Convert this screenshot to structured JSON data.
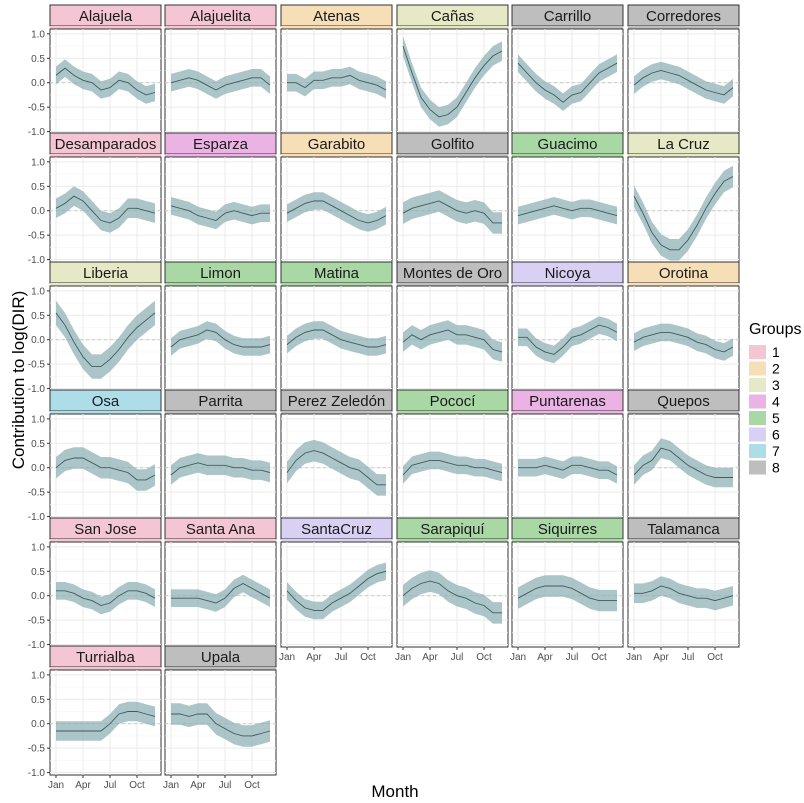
{
  "chart_data": {
    "type": "line",
    "xlabel": "Month",
    "ylabel": "Contribution to log(DIR)",
    "x_ticks": [
      "Jan",
      "Apr",
      "Jul",
      "Oct"
    ],
    "y_ticks": [
      "1.0",
      "0.5",
      "0.0",
      "-0.5",
      "-1.0"
    ],
    "ylim": [
      -1.05,
      1.1
    ],
    "x": [
      1,
      2,
      3,
      4,
      5,
      6,
      7,
      8,
      9,
      10,
      11,
      12
    ],
    "legend": {
      "title": "Groups",
      "position": "right",
      "items": [
        {
          "label": "1",
          "color": "#F4C6D3"
        },
        {
          "label": "2",
          "color": "#F6DEB7"
        },
        {
          "label": "3",
          "color": "#E5E9C5"
        },
        {
          "label": "4",
          "color": "#EBB3E3"
        },
        {
          "label": "5",
          "color": "#A9D8A5"
        },
        {
          "label": "6",
          "color": "#D8D1F3"
        },
        {
          "label": "7",
          "color": "#AEDDEA"
        },
        {
          "label": "8",
          "color": "#BEBEBE"
        }
      ]
    },
    "panels": [
      {
        "name": "Alajuela",
        "group": "1",
        "values": [
          0.15,
          0.3,
          0.15,
          0.05,
          0.0,
          -0.15,
          -0.1,
          0.05,
          0.0,
          -0.15,
          -0.25,
          -0.2
        ],
        "band": 0.18
      },
      {
        "name": "Alajuelita",
        "group": "1",
        "values": [
          0.0,
          0.05,
          0.1,
          0.05,
          -0.05,
          -0.15,
          -0.05,
          0.0,
          0.05,
          0.1,
          0.1,
          -0.05
        ],
        "band": 0.18
      },
      {
        "name": "Atenas",
        "group": "2",
        "values": [
          0.0,
          0.0,
          -0.1,
          0.05,
          0.05,
          0.1,
          0.1,
          0.15,
          0.05,
          0.0,
          -0.05,
          -0.15
        ],
        "band": 0.18
      },
      {
        "name": "Cañas",
        "group": "3",
        "values": [
          0.75,
          0.2,
          -0.3,
          -0.55,
          -0.7,
          -0.65,
          -0.5,
          -0.2,
          0.1,
          0.35,
          0.55,
          0.65
        ],
        "band": 0.2
      },
      {
        "name": "Carrillo",
        "group": "8",
        "values": [
          0.4,
          0.2,
          0.0,
          -0.15,
          -0.25,
          -0.4,
          -0.25,
          -0.2,
          0.0,
          0.2,
          0.3,
          0.4
        ],
        "band": 0.18
      },
      {
        "name": "Corredores",
        "group": "8",
        "values": [
          -0.05,
          0.1,
          0.2,
          0.25,
          0.2,
          0.15,
          0.05,
          -0.05,
          -0.15,
          -0.2,
          -0.25,
          -0.1
        ],
        "band": 0.18
      },
      {
        "name": "Desamparados",
        "group": "1",
        "values": [
          0.05,
          0.15,
          0.3,
          0.2,
          0.0,
          -0.2,
          -0.25,
          -0.15,
          0.05,
          0.05,
          0.0,
          -0.05
        ],
        "band": 0.2
      },
      {
        "name": "Esparza",
        "group": "4",
        "values": [
          0.1,
          0.05,
          0.0,
          -0.1,
          -0.15,
          -0.2,
          -0.05,
          0.0,
          -0.05,
          -0.1,
          -0.05,
          -0.05
        ],
        "band": 0.18
      },
      {
        "name": "Garabito",
        "group": "2",
        "values": [
          -0.05,
          0.05,
          0.15,
          0.2,
          0.2,
          0.1,
          0.0,
          -0.1,
          -0.2,
          -0.25,
          -0.2,
          -0.1
        ],
        "band": 0.18
      },
      {
        "name": "Golfito",
        "group": "8",
        "values": [
          -0.05,
          0.05,
          0.1,
          0.15,
          0.2,
          0.1,
          0.0,
          -0.05,
          0.0,
          -0.05,
          -0.25,
          -0.25
        ],
        "band": 0.22
      },
      {
        "name": "Guacimo",
        "group": "5",
        "values": [
          -0.1,
          -0.05,
          0.0,
          0.05,
          0.1,
          0.05,
          0.0,
          0.05,
          0.05,
          0.0,
          -0.05,
          -0.1
        ],
        "band": 0.18
      },
      {
        "name": "La Cruz",
        "group": "3",
        "values": [
          0.3,
          -0.05,
          -0.45,
          -0.7,
          -0.8,
          -0.8,
          -0.6,
          -0.3,
          0.05,
          0.35,
          0.6,
          0.7
        ],
        "band": 0.22
      },
      {
        "name": "Liberia",
        "group": "3",
        "values": [
          0.55,
          0.3,
          -0.05,
          -0.35,
          -0.55,
          -0.55,
          -0.4,
          -0.2,
          0.05,
          0.25,
          0.4,
          0.55
        ],
        "band": 0.25
      },
      {
        "name": "Limon",
        "group": "5",
        "values": [
          -0.15,
          0.0,
          0.05,
          0.1,
          0.2,
          0.15,
          0.0,
          -0.1,
          -0.15,
          -0.15,
          -0.15,
          -0.1
        ],
        "band": 0.18
      },
      {
        "name": "Matina",
        "group": "5",
        "values": [
          -0.1,
          0.05,
          0.15,
          0.2,
          0.2,
          0.1,
          0.0,
          -0.05,
          -0.1,
          -0.15,
          -0.15,
          -0.1
        ],
        "band": 0.18
      },
      {
        "name": "Montes de Oro",
        "group": "8",
        "values": [
          -0.05,
          0.1,
          0.0,
          0.1,
          0.15,
          0.2,
          0.1,
          0.1,
          0.05,
          0.0,
          -0.2,
          -0.25
        ],
        "band": 0.2
      },
      {
        "name": "Nicoya",
        "group": "6",
        "values": [
          0.05,
          0.05,
          -0.15,
          -0.25,
          -0.3,
          -0.15,
          0.05,
          0.1,
          0.2,
          0.3,
          0.25,
          0.15
        ],
        "band": 0.18
      },
      {
        "name": "Orotina",
        "group": "2",
        "values": [
          -0.05,
          0.05,
          0.1,
          0.15,
          0.15,
          0.1,
          0.05,
          -0.05,
          -0.1,
          -0.2,
          -0.25,
          -0.15
        ],
        "band": 0.18
      },
      {
        "name": "Osa",
        "group": "7",
        "values": [
          0.0,
          0.15,
          0.2,
          0.2,
          0.1,
          0.0,
          0.0,
          -0.05,
          -0.1,
          -0.25,
          -0.25,
          -0.15
        ],
        "band": 0.22
      },
      {
        "name": "Parrita",
        "group": "8",
        "values": [
          -0.15,
          0.0,
          0.05,
          0.1,
          0.05,
          0.05,
          0.05,
          0.0,
          0.0,
          -0.05,
          -0.05,
          -0.1
        ],
        "band": 0.2
      },
      {
        "name": "Perez Zeledón",
        "group": "8",
        "values": [
          -0.1,
          0.15,
          0.3,
          0.35,
          0.3,
          0.2,
          0.1,
          0.0,
          -0.05,
          -0.2,
          -0.35,
          -0.35
        ],
        "band": 0.22
      },
      {
        "name": "Pococí",
        "group": "5",
        "values": [
          -0.15,
          0.05,
          0.1,
          0.15,
          0.15,
          0.1,
          0.05,
          0.05,
          0.0,
          0.0,
          -0.05,
          -0.1
        ],
        "band": 0.18
      },
      {
        "name": "Puntarenas",
        "group": "4",
        "values": [
          0.0,
          0.0,
          0.0,
          0.05,
          0.0,
          -0.05,
          0.05,
          0.05,
          0.0,
          -0.05,
          -0.05,
          -0.15
        ],
        "band": 0.18
      },
      {
        "name": "Quepos",
        "group": "8",
        "values": [
          -0.15,
          0.05,
          0.15,
          0.4,
          0.35,
          0.2,
          0.05,
          -0.05,
          -0.15,
          -0.2,
          -0.2,
          -0.2
        ],
        "band": 0.2
      },
      {
        "name": "San Jose",
        "group": "1",
        "values": [
          0.1,
          0.1,
          0.05,
          -0.05,
          -0.1,
          -0.2,
          -0.15,
          0.0,
          0.1,
          0.1,
          0.05,
          -0.05
        ],
        "band": 0.18
      },
      {
        "name": "Santa Ana",
        "group": "1",
        "values": [
          -0.05,
          -0.05,
          -0.05,
          -0.05,
          -0.1,
          -0.15,
          -0.05,
          0.15,
          0.25,
          0.15,
          0.05,
          -0.05
        ],
        "band": 0.18
      },
      {
        "name": "SantaCruz",
        "group": "6",
        "values": [
          0.1,
          -0.1,
          -0.25,
          -0.3,
          -0.3,
          -0.15,
          -0.05,
          0.05,
          0.2,
          0.35,
          0.45,
          0.5
        ],
        "band": 0.18
      },
      {
        "name": "Sarapiquí",
        "group": "5",
        "values": [
          0.0,
          0.15,
          0.25,
          0.3,
          0.25,
          0.1,
          0.0,
          -0.05,
          -0.15,
          -0.2,
          -0.35,
          -0.35
        ],
        "band": 0.22
      },
      {
        "name": "Siquirres",
        "group": "5",
        "values": [
          -0.05,
          0.05,
          0.15,
          0.2,
          0.2,
          0.2,
          0.15,
          0.05,
          -0.05,
          -0.1,
          -0.1,
          -0.1
        ],
        "band": 0.22
      },
      {
        "name": "Talamanca",
        "group": "8",
        "values": [
          0.05,
          0.05,
          0.1,
          0.2,
          0.15,
          0.05,
          0.0,
          -0.05,
          -0.05,
          -0.1,
          -0.05,
          0.0
        ],
        "band": 0.2
      },
      {
        "name": "Turrialba",
        "group": "1",
        "values": [
          -0.15,
          -0.15,
          -0.15,
          -0.15,
          -0.15,
          -0.15,
          0.0,
          0.2,
          0.25,
          0.25,
          0.2,
          0.15
        ],
        "band": 0.2
      },
      {
        "name": "Upala",
        "group": "8",
        "values": [
          0.2,
          0.2,
          0.15,
          0.2,
          0.2,
          0.0,
          -0.1,
          -0.2,
          -0.25,
          -0.25,
          -0.2,
          -0.15
        ],
        "band": 0.22
      }
    ]
  }
}
